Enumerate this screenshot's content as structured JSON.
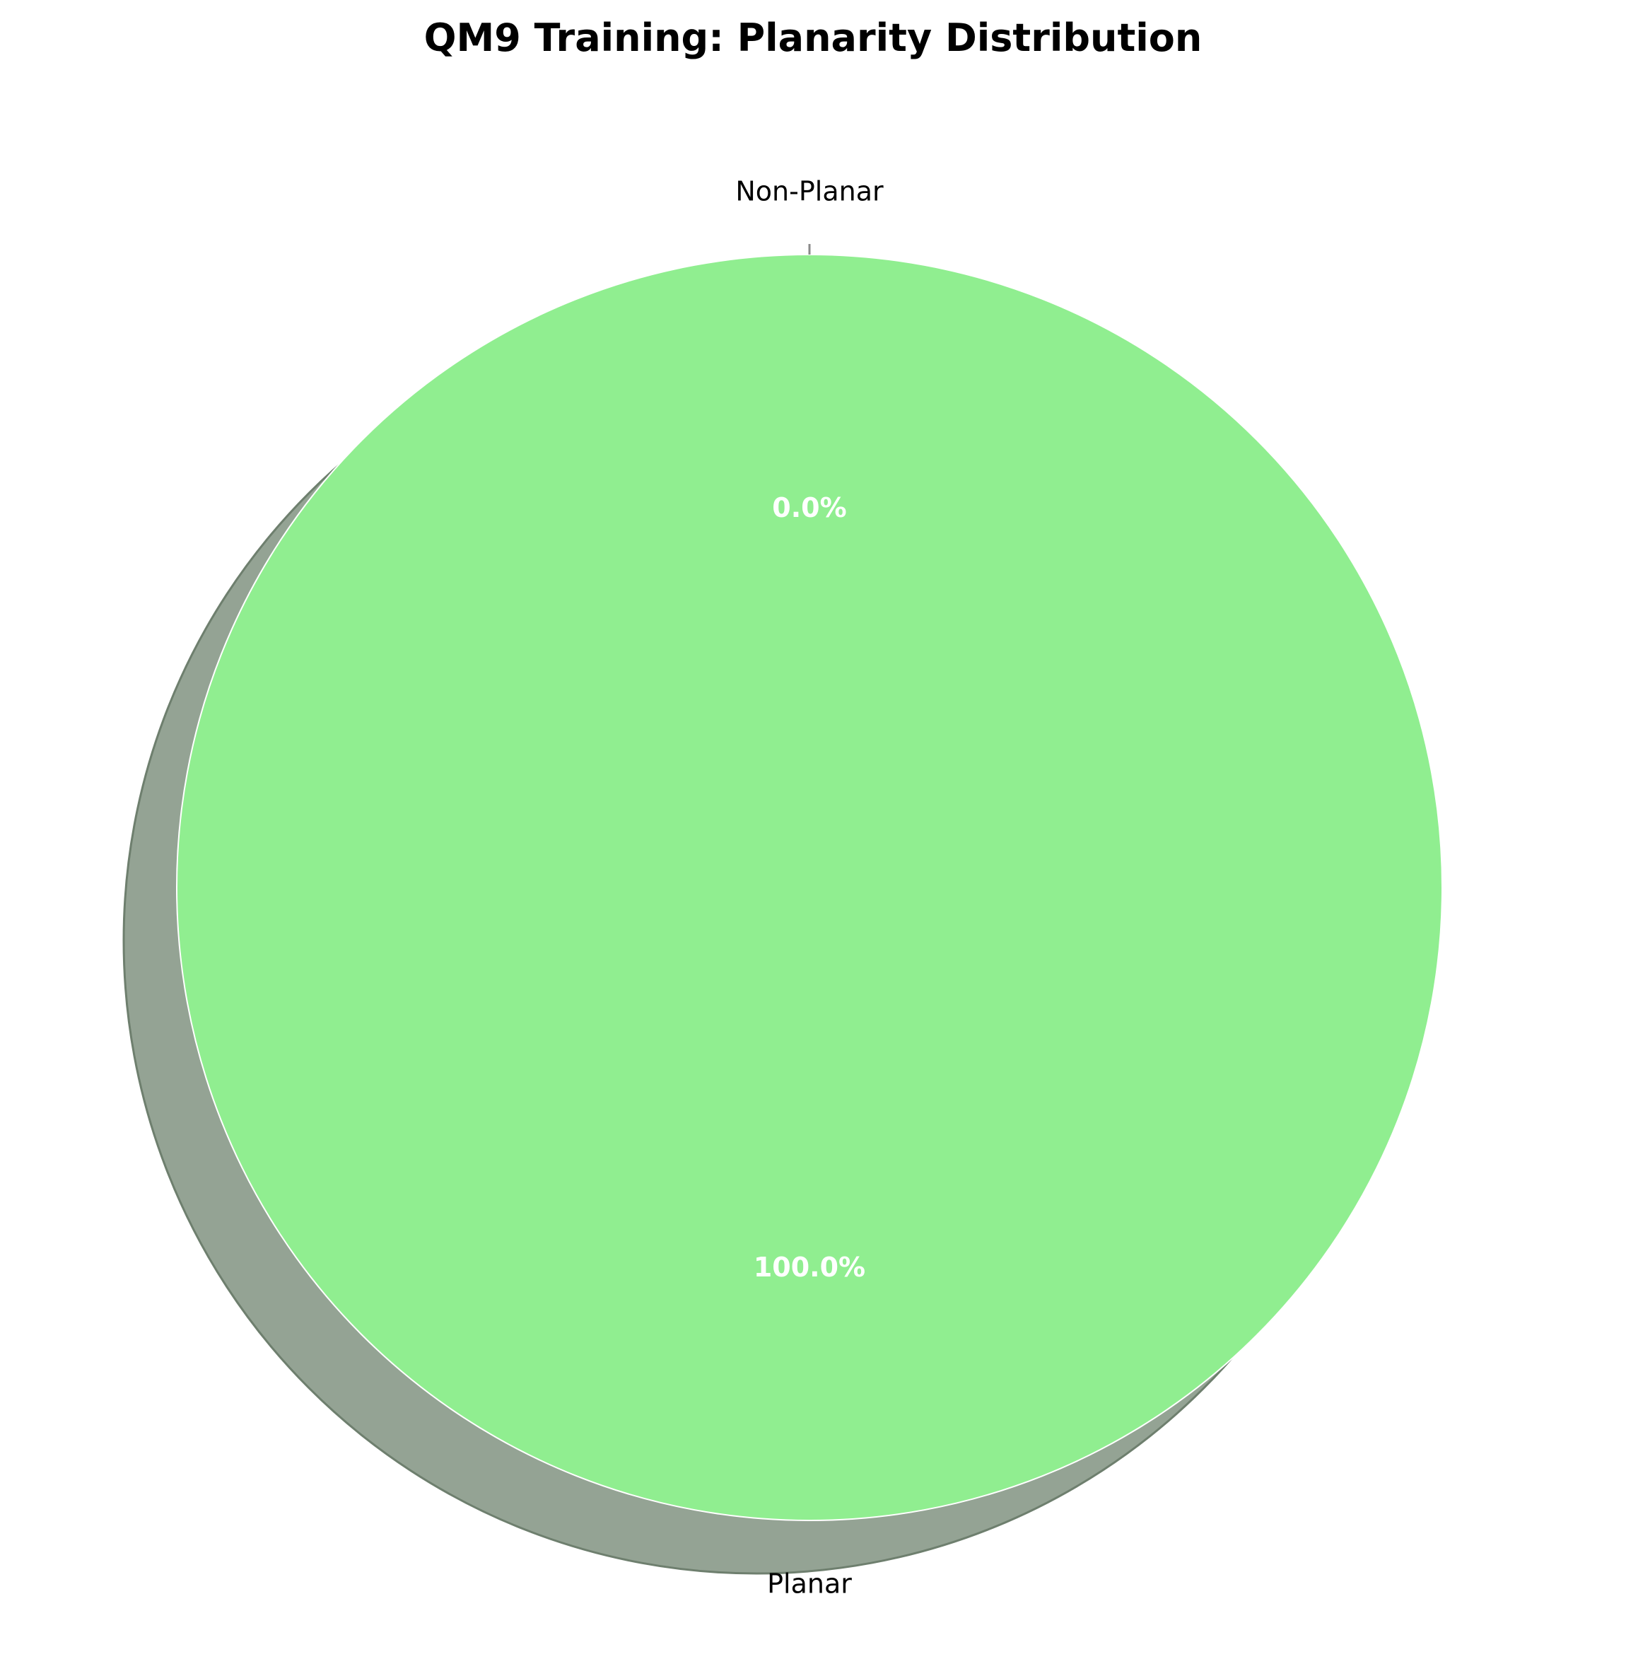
{
  "chart_data": {
    "type": "pie",
    "title": "QM9 Training: Planarity Distribution",
    "slices": [
      {
        "label": "Planar",
        "value": 100.0,
        "pct_label": "100.0%",
        "color": "#90ee90"
      },
      {
        "label": "Non-Planar",
        "value": 0.0,
        "pct_label": "0.0%",
        "color": "#ff6b6b"
      }
    ],
    "shadow": true,
    "shadow_color": "#94a394",
    "edge_color": "#ffffff",
    "legend": "none",
    "grid": false
  }
}
